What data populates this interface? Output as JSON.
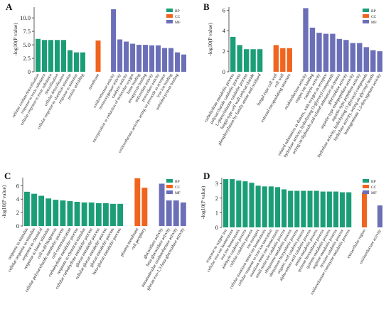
{
  "colors": {
    "BP": "#1b9e77",
    "CC": "#f0641e",
    "MF": "#6b6fb8"
  },
  "chart_data": [
    {
      "panel": "A",
      "type": "bar",
      "ylabel": "-log10(P value)",
      "ylim": [
        0,
        12
      ],
      "yticks": [
        0,
        2.5,
        5,
        7.5,
        10
      ],
      "ytick_labels": [
        "0",
        "2.5",
        "5.0",
        "7.5",
        "10.0"
      ],
      "legend": [
        "BP",
        "CC",
        "MF"
      ],
      "categories": [
        {
          "label": "cellular oxidant detoxification",
          "value": 6.1,
          "group": "BP"
        },
        {
          "label": "response to toxic substance",
          "value": 5.9,
          "group": "BP"
        },
        {
          "label": "cellular response to toxic substance",
          "value": 5.9,
          "group": "BP"
        },
        {
          "label": "detoxification",
          "value": 5.9,
          "group": "BP"
        },
        {
          "label": "cellular detoxification",
          "value": 5.9,
          "group": "BP"
        },
        {
          "label": "cellular response to chemical stimulus",
          "value": 4.0,
          "group": "BP"
        },
        {
          "label": "response to stimulus",
          "value": 3.6,
          "group": "BP"
        },
        {
          "label": "protein unfolding",
          "value": 3.6,
          "group": "BP"
        },
        {
          "label": "membrane",
          "value": 5.8,
          "group": "CC"
        },
        {
          "label": "oxidoreductase activity",
          "value": 11.6,
          "group": "MF"
        },
        {
          "label": "monooxygenase activity",
          "value": 6.0,
          "group": "MF"
        },
        {
          "label": "catalytic activity",
          "value": 5.6,
          "group": "MF"
        },
        {
          "label": "incorporation or reduction of molecular oxygen",
          "value": 5.2,
          "group": "MF"
        },
        {
          "label": "heme binding",
          "value": 5.0,
          "group": "MF"
        },
        {
          "label": "tetrapyrrole binding",
          "value": 5.0,
          "group": "MF"
        },
        {
          "label": "antioxidant activity",
          "value": 4.9,
          "group": "MF"
        },
        {
          "label": "peroxidase activity",
          "value": 4.9,
          "group": "MF"
        },
        {
          "label": "oxidoreductase activity, acting on peroxide as acceptor",
          "value": 4.4,
          "group": "MF"
        },
        {
          "label": "iron ion binding",
          "value": 4.4,
          "group": "MF"
        },
        {
          "label": "unfolded protein binding",
          "value": 3.6,
          "group": "MF"
        },
        {
          "label": "",
          "value": 3.2,
          "group": "MF"
        }
      ]
    },
    {
      "panel": "B",
      "type": "bar",
      "ylabel": "-log10(P value)",
      "ylim": [
        0,
        6.3
      ],
      "yticks": [
        0,
        2,
        4,
        6
      ],
      "ytick_labels": [
        "0",
        "2",
        "4",
        "6"
      ],
      "legend": [
        "BP",
        "CC",
        "MF"
      ],
      "categories": [
        {
          "label": "carbohydrate metabolic process",
          "value": 3.4,
          "group": "BP"
        },
        {
          "label": "polysaccharide catabolic process",
          "value": 2.6,
          "group": "BP"
        },
        {
          "label": "L-phenylalanine catabolic process",
          "value": 2.2,
          "group": "BP"
        },
        {
          "label": "fungal-type cell wall polysaccharide",
          "value": 2.2,
          "group": "BP"
        },
        {
          "label": "phosphorylation by family amine and oxidized",
          "value": 2.2,
          "group": "BP"
        },
        {
          "label": "fungal-type cell wall",
          "value": 2.6,
          "group": "CC"
        },
        {
          "label": "cell wall",
          "value": 2.3,
          "group": "CC"
        },
        {
          "label": "external encapsulating structure",
          "value": 2.3,
          "group": "CC"
        },
        {
          "label": "oxidoreductase activity",
          "value": 6.2,
          "group": "MF"
        },
        {
          "label": "copper ion binding",
          "value": 4.3,
          "group": "MF"
        },
        {
          "label": "catalytic activity",
          "value": 3.8,
          "group": "MF"
        },
        {
          "label": "related substances as donors, with oxygen as acceptor",
          "value": 3.7,
          "group": "MF"
        },
        {
          "label": "hydrolase activity, hydrolyzing O-glycosyl compounds",
          "value": 3.7,
          "group": "MF"
        },
        {
          "label": "acting on diphenols and related substances as donors",
          "value": 3.2,
          "group": "MF"
        },
        {
          "label": "glucosidase activity",
          "value": 3.1,
          "group": "MF"
        },
        {
          "label": "aspartic-type endopeptidase activity",
          "value": 2.8,
          "group": "MF"
        },
        {
          "label": "aspartic-type peptidase activity",
          "value": 2.8,
          "group": "MF"
        },
        {
          "label": "hydrolase activity, hydrolyzing O-glycosyl compounds",
          "value": 2.4,
          "group": "MF"
        },
        {
          "label": "hydrolase activity, acting on glycosyl bonds",
          "value": 2.1,
          "group": "MF"
        },
        {
          "label": "homogentisate 1,2-dioxygenase activity",
          "value": 2.0,
          "group": "MF"
        }
      ]
    },
    {
      "panel": "C",
      "type": "bar",
      "ylabel": "-log10(P value)",
      "ylim": [
        0,
        7.2
      ],
      "yticks": [
        0,
        2,
        4,
        6
      ],
      "ytick_labels": [
        "0",
        "2",
        "4",
        "6"
      ],
      "legend": [
        "BP",
        "CC",
        "MF"
      ],
      "categories": [
        {
          "label": "response to stimulus",
          "value": 5.1,
          "group": "BP"
        },
        {
          "label": "cellular response to stimulus",
          "value": 4.8,
          "group": "BP"
        },
        {
          "label": "response to chemical",
          "value": 4.5,
          "group": "BP"
        },
        {
          "label": "response to biotic stimulus",
          "value": 4.1,
          "group": "BP"
        },
        {
          "label": "cell wall biogenesis",
          "value": 3.9,
          "group": "BP"
        },
        {
          "label": "cellular polysaccharide metabolic process",
          "value": 3.8,
          "group": "BP"
        },
        {
          "label": "cell communication",
          "value": 3.7,
          "group": "BP"
        },
        {
          "label": "carbohydrate metabolic process",
          "value": 3.6,
          "group": "BP"
        },
        {
          "label": "response to chemical stimulus",
          "value": 3.5,
          "group": "BP"
        },
        {
          "label": "cellular carbohydrate metabolic process",
          "value": 3.5,
          "group": "BP"
        },
        {
          "label": "glucan metabolic process",
          "value": 3.4,
          "group": "BP"
        },
        {
          "label": "cellular glucan metabolic process",
          "value": 3.4,
          "group": "BP"
        },
        {
          "label": "glucan metabolic process",
          "value": 3.3,
          "group": "BP"
        },
        {
          "label": "beta-glucan metabolic process",
          "value": 3.3,
          "group": "BP"
        },
        {
          "label": "plasma membrane",
          "value": 7.1,
          "group": "CC"
        },
        {
          "label": "cell periphery",
          "value": 5.7,
          "group": "CC"
        },
        {
          "label": "glucosidase activity",
          "value": 6.3,
          "group": "MF"
        },
        {
          "label": "beta-glucosidase activity",
          "value": 3.8,
          "group": "MF"
        },
        {
          "label": "intramolecular oxidoreductase activity",
          "value": 3.8,
          "group": "MF"
        },
        {
          "label": "glucan exo-1,3-beta-glucosidase activity",
          "value": 3.5,
          "group": "MF"
        }
      ]
    },
    {
      "panel": "D",
      "type": "bar",
      "ylabel": "-log10(P value)",
      "ylim": [
        0,
        3.4
      ],
      "yticks": [
        0,
        1,
        2,
        3
      ],
      "ytick_labels": [
        "0",
        "1",
        "2",
        "3"
      ],
      "legend": [
        "BP",
        "CC",
        "MF"
      ],
      "categories": [
        {
          "label": "response to copper ion",
          "value": 3.3,
          "group": "BP"
        },
        {
          "label": "cellular iron ion homeostasis",
          "value": 3.3,
          "group": "BP"
        },
        {
          "label": "iron ion homeostasis",
          "value": 3.2,
          "group": "BP"
        },
        {
          "label": "aldehyde catabolic process",
          "value": 3.15,
          "group": "BP"
        },
        {
          "label": "cellular catabolic process",
          "value": 3.05,
          "group": "BP"
        },
        {
          "label": "ion transport",
          "value": 2.85,
          "group": "BP"
        },
        {
          "label": "cellular transition metal ion homeostasis",
          "value": 2.8,
          "group": "BP"
        },
        {
          "label": "cellular response to iron ion starvation",
          "value": 2.8,
          "group": "BP"
        },
        {
          "label": "transition metal ion homeostasis",
          "value": 2.75,
          "group": "BP"
        },
        {
          "label": "small molecule catabolic process",
          "value": 2.6,
          "group": "BP"
        },
        {
          "label": "ubiquinone metabolic process",
          "value": 2.5,
          "group": "BP"
        },
        {
          "label": "ubiquinone biosynthetic process",
          "value": 2.5,
          "group": "BP"
        },
        {
          "label": "organic acid catabolic process",
          "value": 2.5,
          "group": "BP"
        },
        {
          "label": "alpha-amino acid catabolic process",
          "value": 2.5,
          "group": "BP"
        },
        {
          "label": "amine metabolic process",
          "value": 2.5,
          "group": "BP"
        },
        {
          "label": "quinone biosynthetic process",
          "value": 2.45,
          "group": "BP"
        },
        {
          "label": "quinone metabolic process",
          "value": 2.45,
          "group": "BP"
        },
        {
          "label": "arginine metabolic process",
          "value": 2.45,
          "group": "BP"
        },
        {
          "label": "tyrosine catabolic process",
          "value": 2.4,
          "group": "BP"
        },
        {
          "label": "oxidoreductase coenzyme metabolic process",
          "value": 2.4,
          "group": "BP"
        },
        {
          "label": "extracellular region",
          "value": 2.4,
          "group": "CC"
        },
        {
          "label": "oxidoreductase activity",
          "value": 1.5,
          "group": "MF"
        }
      ]
    }
  ]
}
